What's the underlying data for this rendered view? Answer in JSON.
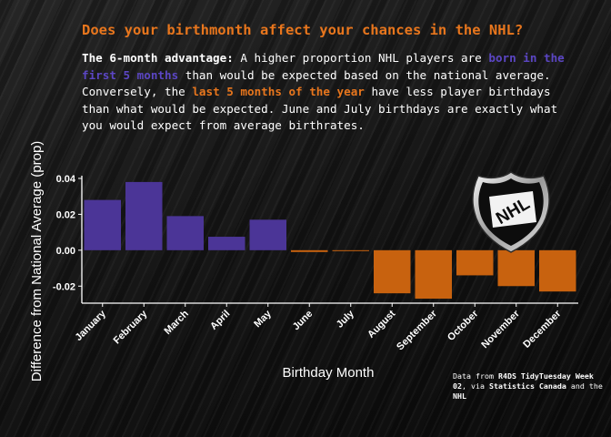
{
  "title": "Does your birthmonth affect your chances in the NHL?",
  "description": {
    "lead": "The 6-month advantage:",
    "part1": " A higher proportion NHL players are ",
    "highlight1": "born in the first 5 months",
    "part2": " than would be expected based on the national average. Conversely, the ",
    "highlight2": "last 5 months of the year",
    "part3": " have less player birthdays than what would be expected. June and July birthdays are exactly what you would expect from average birthrates."
  },
  "caption": {
    "t1": "Data from ",
    "b1": "R4DS TidyTuesday Week 02",
    "t2": ", via ",
    "b2": "Statistics Canada",
    "t3": " and the ",
    "b3": "NHL"
  },
  "logo": {
    "text": "NHL"
  },
  "colors": {
    "positive": "#4b3597",
    "negative": "#c8620f",
    "title": "#e8761d",
    "highlight_purple": "#5b46c4"
  },
  "chart_data": {
    "type": "bar",
    "categories": [
      "January",
      "February",
      "March",
      "April",
      "May",
      "June",
      "July",
      "August",
      "September",
      "October",
      "November",
      "December"
    ],
    "values": [
      0.028,
      0.038,
      0.019,
      0.0075,
      0.017,
      -0.001,
      -0.0005,
      -0.024,
      -0.027,
      -0.014,
      -0.02,
      -0.023
    ],
    "xlabel": "Birthday Month",
    "ylabel": "Difference from National Average (prop)",
    "yticks": [
      0.04,
      0.02,
      0.0,
      -0.02
    ],
    "ytick_labels": [
      "0.04",
      "0.02",
      "0.00",
      "-0.02"
    ],
    "ylim": [
      -0.0295,
      0.0415
    ],
    "grid": false
  }
}
